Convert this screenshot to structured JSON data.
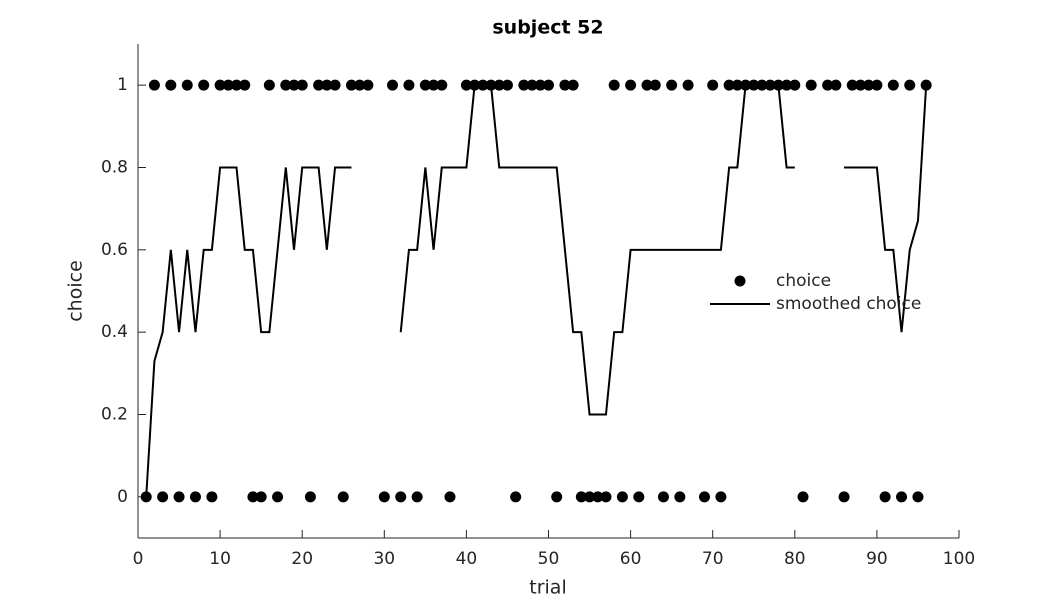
{
  "chart_data": {
    "type": "line",
    "title": "subject 52",
    "x_label": "trial",
    "y_label": "choice",
    "x": [
      1,
      2,
      3,
      4,
      5,
      6,
      7,
      8,
      9,
      10,
      11,
      12,
      13,
      14,
      15,
      16,
      17,
      18,
      19,
      20,
      21,
      22,
      23,
      24,
      25,
      26,
      27,
      28,
      29,
      30,
      31,
      32,
      33,
      34,
      35,
      36,
      37,
      38,
      39,
      40,
      41,
      42,
      43,
      44,
      45,
      46,
      47,
      48,
      49,
      50,
      51,
      52,
      53,
      54,
      55,
      56,
      57,
      58,
      59,
      60,
      61,
      62,
      63,
      64,
      65,
      66,
      67,
      68,
      69,
      70,
      71,
      72,
      73,
      74,
      75,
      76,
      77,
      78,
      79,
      80,
      81,
      82,
      83,
      84,
      85,
      86,
      87,
      88,
      89,
      90,
      91,
      92,
      93,
      94,
      95,
      96
    ],
    "series": [
      {
        "name": "choice",
        "style": "markers",
        "color": "#000000",
        "values": [
          0,
          1,
          0,
          1,
          0,
          1,
          0,
          1,
          0,
          1,
          1,
          1,
          1,
          0,
          0,
          1,
          0,
          1,
          1,
          1,
          0,
          1,
          1,
          1,
          0,
          1,
          1,
          1,
          null,
          0,
          1,
          0,
          1,
          0,
          1,
          1,
          1,
          0,
          null,
          1,
          1,
          1,
          1,
          1,
          1,
          0,
          1,
          1,
          1,
          1,
          0,
          1,
          1,
          0,
          0,
          0,
          0,
          1,
          0,
          1,
          0,
          1,
          1,
          0,
          1,
          0,
          1,
          null,
          0,
          1,
          0,
          1,
          1,
          1,
          1,
          1,
          1,
          1,
          1,
          1,
          0,
          1,
          null,
          1,
          1,
          0,
          1,
          1,
          1,
          1,
          0,
          1,
          0,
          1,
          0,
          1
        ]
      },
      {
        "name": "smoothed choice",
        "style": "line",
        "color": "#000000",
        "values": [
          0,
          0.33,
          0.4,
          0.6,
          0.4,
          0.6,
          0.4,
          0.6,
          0.6,
          0.8,
          0.8,
          0.8,
          0.6,
          0.6,
          0.4,
          0.4,
          0.6,
          0.8,
          0.6,
          0.8,
          0.8,
          0.8,
          0.6,
          0.8,
          0.8,
          0.8,
          null,
          null,
          null,
          null,
          null,
          0.4,
          0.6,
          0.6,
          0.8,
          0.6,
          0.8,
          0.8,
          0.8,
          0.8,
          1,
          1,
          1,
          0.8,
          0.8,
          0.8,
          0.8,
          0.8,
          0.8,
          0.8,
          0.8,
          0.6,
          0.4,
          0.4,
          0.2,
          0.2,
          0.2,
          0.4,
          0.4,
          0.6,
          0.6,
          0.6,
          0.6,
          0.6,
          0.6,
          0.6,
          0.6,
          0.6,
          0.6,
          0.6,
          0.6,
          0.8,
          0.8,
          1,
          1,
          1,
          1,
          1,
          0.8,
          0.8,
          null,
          null,
          null,
          null,
          null,
          0.8,
          0.8,
          0.8,
          0.8,
          0.8,
          0.6,
          0.6,
          0.4,
          0.6,
          0.67,
          1
        ]
      }
    ],
    "xlim": [
      0,
      100
    ],
    "xticks": [
      0,
      10,
      20,
      30,
      40,
      50,
      60,
      70,
      80,
      90,
      100
    ],
    "ylim": [
      -0.1,
      1.1
    ],
    "yticks": [
      0,
      0.2,
      0.4,
      0.6,
      0.8,
      1
    ],
    "legend": "right"
  }
}
